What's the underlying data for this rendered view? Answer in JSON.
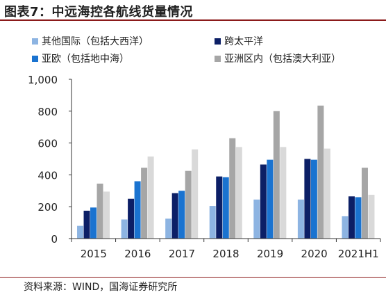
{
  "figure_title": "图表7：中远海控各航线货量情况",
  "source": "资料来源：WIND，国海证券研究所",
  "chart_data": {
    "type": "bar",
    "categories": [
      "2015",
      "2016",
      "2017",
      "2018",
      "2019",
      "2020",
      "2021H1"
    ],
    "series": [
      {
        "name": "其他国际（包括大西洋）",
        "color": "#8db4e2",
        "values": [
          80,
          120,
          125,
          205,
          245,
          245,
          140
        ]
      },
      {
        "name": "跨太平洋",
        "color": "#0c1f66",
        "values": [
          175,
          250,
          285,
          390,
          465,
          500,
          265
        ]
      },
      {
        "name": "亚欧（包括地中海）",
        "color": "#1a73d0",
        "values": [
          195,
          360,
          300,
          385,
          495,
          495,
          260
        ]
      },
      {
        "name": "亚洲区内（包括澳大利亚）",
        "color": "#a6a6a6",
        "values": [
          345,
          445,
          425,
          630,
          800,
          835,
          445
        ]
      },
      {
        "name": "",
        "color": "#d9d9d9",
        "values": [
          295,
          515,
          560,
          575,
          575,
          565,
          275
        ]
      }
    ],
    "ylim": [
      0,
      1000
    ],
    "yticks": [
      "0",
      "200",
      "400",
      "600",
      "800",
      "1,000"
    ],
    "legend_position": "top",
    "grid": false
  }
}
